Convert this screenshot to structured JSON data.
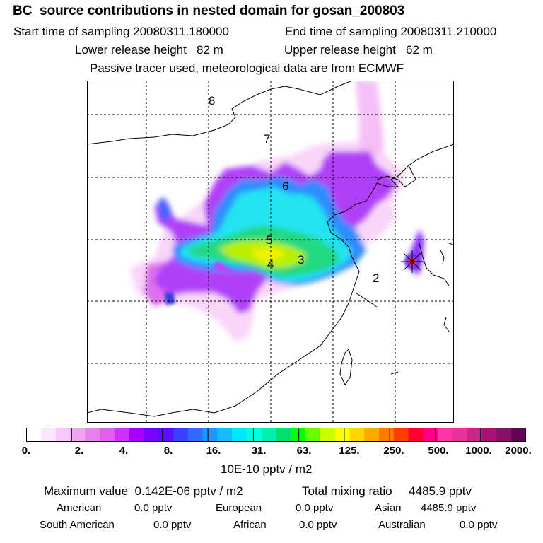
{
  "title": "BC  source contributions in nested domain for gosan_200803",
  "sampling": {
    "start": "Start time of sampling 20080311.180000",
    "end": "End time of sampling 20080311.210000"
  },
  "release": {
    "lower": "Lower release height   82 m",
    "upper": "Upper release height   62 m"
  },
  "note": "Passive tracer used, meteorological data are from ECMWF",
  "map": {
    "region_labels": [
      "2",
      "3",
      "4",
      "5",
      "6",
      "7",
      "8"
    ]
  },
  "colorbar": {
    "colors": [
      "#ffffff",
      "#fce8fc",
      "#f8c8f8",
      "#f2a6f2",
      "#ea80ea",
      "#e060ee",
      "#cc33ff",
      "#a700ff",
      "#7a00ff",
      "#5a10ff",
      "#3a40ff",
      "#2f6bff",
      "#1f95ff",
      "#14bcff",
      "#00e8ff",
      "#00ffe0",
      "#00f0b0",
      "#00e070",
      "#00ff00",
      "#66ff00",
      "#ccff00",
      "#ffff00",
      "#ffd400",
      "#ffaa00",
      "#ff7a00",
      "#ff3c00",
      "#ff0033",
      "#ff0088",
      "#ff33aa",
      "#e6339a",
      "#cc2688",
      "#aa1177",
      "#881166",
      "#660055"
    ],
    "tick_labels": [
      "0.",
      "2.",
      "4.",
      "8.",
      "16.",
      "31.",
      "63.",
      "125.",
      "250.",
      "500.",
      "1000.",
      "2000."
    ],
    "units": "10E-10 pptv / m2"
  },
  "stats": {
    "max_value": "Maximum value  0.142E-06 pptv / m2",
    "total_mixing": "Total mixing ratio     4485.9 pptv",
    "row1": [
      {
        "label": "American",
        "value": "0.0 pptv"
      },
      {
        "label": "European",
        "value": "0.0 pptv"
      },
      {
        "label": "Asian",
        "value": "4485.9 pptv"
      }
    ],
    "row2": [
      {
        "label": "South American",
        "value": "0.0 pptv"
      },
      {
        "label": "African",
        "value": "0.0 pptv"
      },
      {
        "label": "Australian",
        "value": "0.0 pptv"
      }
    ]
  }
}
